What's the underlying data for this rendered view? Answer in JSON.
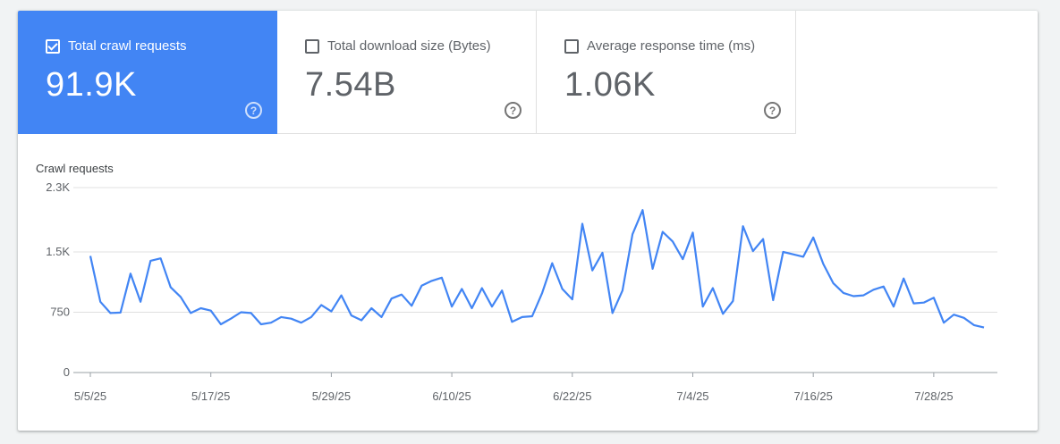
{
  "metrics": [
    {
      "label": "Total crawl requests",
      "value": "91.9K",
      "checked": true
    },
    {
      "label": "Total download size (Bytes)",
      "value": "7.54B",
      "checked": false
    },
    {
      "label": "Average response time (ms)",
      "value": "1.06K",
      "checked": false
    }
  ],
  "help_glyph": "?",
  "colors": {
    "accent": "#4285f4",
    "line": "#4285f4",
    "grid": "#e0e0e0"
  },
  "chart_data": {
    "type": "line",
    "ylabel": "Crawl requests",
    "ylim": [
      0,
      2300
    ],
    "yticks": [
      {
        "value": 0,
        "label": "0"
      },
      {
        "value": 750,
        "label": "750"
      },
      {
        "value": 1500,
        "label": "1.5K"
      },
      {
        "value": 2300,
        "label": "2.3K"
      }
    ],
    "xticks": [
      "5/5/25",
      "5/17/25",
      "5/29/25",
      "6/10/25",
      "6/22/25",
      "7/4/25",
      "7/16/25",
      "7/28/25"
    ],
    "grid": true,
    "series": [
      {
        "start": "5/5/25",
        "values": [
          1450,
          880,
          740,
          745,
          1230,
          880,
          1390,
          1420,
          1060,
          940,
          740,
          800,
          770,
          600,
          670,
          750,
          740,
          600,
          620,
          690,
          670,
          620,
          690,
          840,
          760,
          960,
          710,
          650,
          800,
          690,
          920,
          970,
          830,
          1080,
          1140,
          1180,
          820,
          1040,
          800,
          1050,
          820,
          1020,
          630,
          690,
          700,
          990,
          1360,
          1040,
          910,
          1850,
          1270,
          1490,
          740,
          1020,
          1720,
          2020,
          1290,
          1750,
          1630,
          1410,
          1740,
          820,
          1050,
          730,
          890,
          1820,
          1510,
          1660,
          900,
          1500,
          1470,
          1440,
          1680,
          1350,
          1110,
          990,
          950,
          960,
          1030,
          1070,
          820,
          1170,
          860,
          870,
          930,
          620,
          720,
          680,
          590,
          560
        ]
      }
    ]
  }
}
